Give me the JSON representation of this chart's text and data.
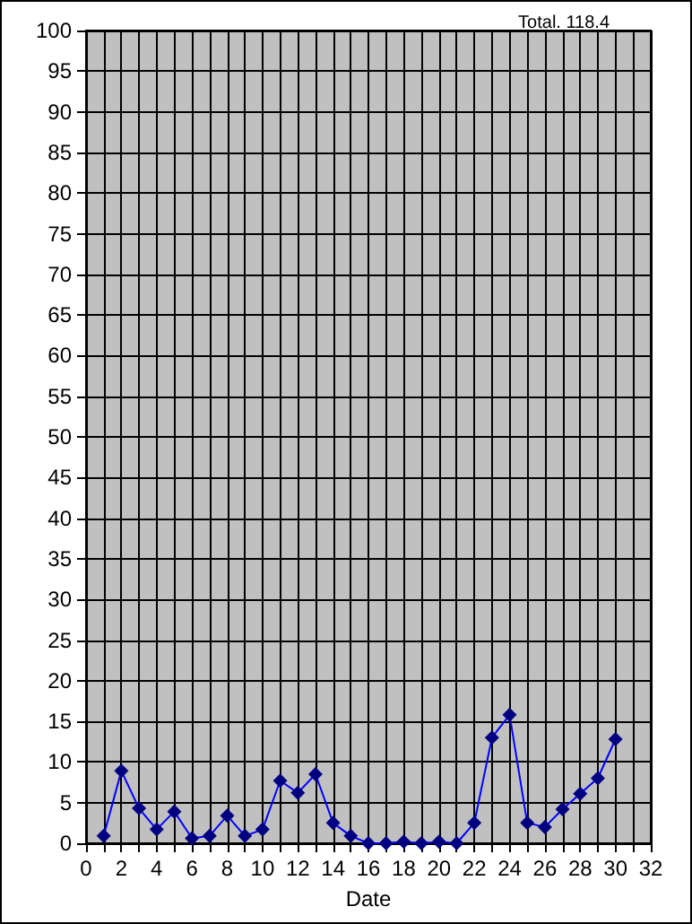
{
  "chart_data": {
    "type": "line",
    "title": "Total. 118.4",
    "xlabel": "Date",
    "x": [
      1,
      2,
      3,
      4,
      5,
      6,
      7,
      8,
      9,
      10,
      11,
      12,
      13,
      14,
      15,
      16,
      17,
      18,
      19,
      20,
      21,
      22,
      23,
      24,
      25,
      26,
      27,
      28,
      29,
      30
    ],
    "series": [
      {
        "color": "#0000ff",
        "values": [
          0.9,
          8.9,
          4.3,
          1.7,
          3.9,
          0.6,
          0.9,
          3.4,
          0.9,
          1.7,
          7.7,
          6.2,
          8.5,
          2.5,
          0.9,
          0,
          0,
          0.2,
          0,
          0.2,
          0,
          2.5,
          13.0,
          15.8,
          2.5,
          2.0,
          4.2,
          6.1,
          8.0,
          12.8
        ]
      }
    ],
    "xlim": [
      0,
      32
    ],
    "xticks": [
      0,
      {
        "value": 1,
        "label": null
      },
      2,
      {
        "value": 3,
        "label": null
      },
      4,
      {
        "value": 5,
        "label": null
      },
      6,
      {
        "value": 7,
        "label": null
      },
      8,
      {
        "value": 9,
        "label": null
      },
      10,
      {
        "value": 11,
        "label": null
      },
      12,
      {
        "value": 13,
        "label": null
      },
      14,
      {
        "value": 15,
        "label": null
      },
      16,
      {
        "value": 17,
        "label": null
      },
      18,
      {
        "value": 19,
        "label": null
      },
      20,
      {
        "value": 21,
        "label": null
      },
      22,
      {
        "value": 23,
        "label": null
      },
      24,
      {
        "value": 25,
        "label": null
      },
      26,
      {
        "value": 27,
        "label": null
      },
      28,
      {
        "value": 29,
        "label": null
      },
      30,
      {
        "value": 31,
        "label": null
      },
      32
    ],
    "ylim": [
      0,
      100
    ],
    "yticks": [
      0,
      5,
      10,
      15,
      20,
      25,
      30,
      35,
      40,
      45,
      50,
      55,
      60,
      65,
      70,
      75,
      80,
      85,
      90,
      95,
      100
    ],
    "grid": true,
    "legend": false,
    "marker": "diamond",
    "line_style": "solid"
  }
}
